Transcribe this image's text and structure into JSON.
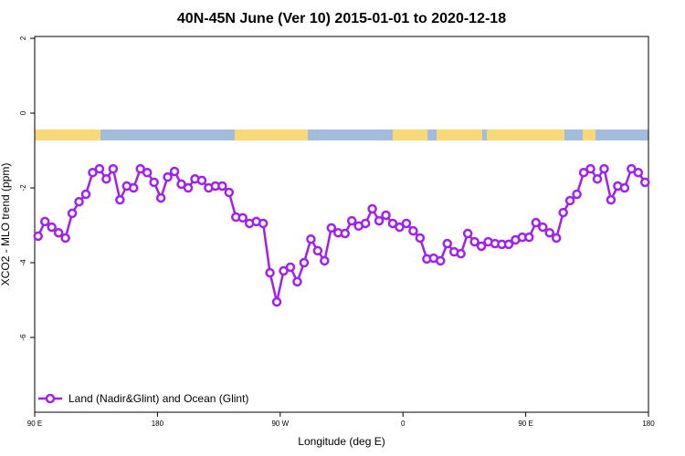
{
  "chart_data": {
    "type": "line",
    "title": "40N-45N June (Ver 10)   2015-01-01 to 2020-12-18",
    "x_label": "Longitude (deg E)",
    "y_label": "XCO2 - MLO trend (ppm)",
    "x": [
      92.5,
      97.5,
      102.5,
      107.5,
      112.5,
      117.5,
      122.5,
      127.5,
      132.5,
      137.5,
      142.5,
      147.5,
      152.5,
      157.5,
      162.5,
      167.5,
      172.5,
      177.5,
      182.5,
      187.5,
      192.5,
      197.5,
      202.5,
      207.5,
      212.5,
      217.5,
      222.5,
      227.5,
      232.5,
      237.5,
      242.5,
      247.5,
      252.5,
      257.5,
      262.5,
      267.5,
      272.5,
      277.5,
      282.5,
      287.5,
      292.5,
      297.5,
      302.5,
      307.5,
      312.5,
      317.5,
      322.5,
      327.5,
      332.5,
      337.5,
      342.5,
      347.5,
      352.5,
      357.5,
      362.5,
      367.5,
      372.5,
      377.5,
      382.5,
      387.5,
      392.5,
      397.5,
      402.5,
      407.5,
      412.5,
      417.5,
      422.5,
      427.5,
      432.5,
      437.5,
      442.5,
      447.5,
      452.5,
      457.5,
      462.5,
      467.5,
      472.5,
      477.5,
      482.5,
      487.5,
      492.5,
      497.5,
      502.5,
      507.5,
      512.5,
      517.5,
      522.5,
      527.5,
      532.5,
      537.5
    ],
    "series": [
      {
        "name": "Land (Nadir&Glint) and Ocean (Glint)",
        "color": "#a020f0",
        "values": [
          -3.29,
          -2.9,
          -3.05,
          -3.2,
          -3.34,
          -2.68,
          -2.37,
          -2.17,
          -1.59,
          -1.49,
          -1.76,
          -1.49,
          -2.32,
          -1.95,
          -2.0,
          -1.49,
          -1.59,
          -1.85,
          -2.27,
          -1.71,
          -1.56,
          -1.9,
          -2.0,
          -1.76,
          -1.8,
          -2.0,
          -1.95,
          -1.95,
          -2.12,
          -2.78,
          -2.8,
          -2.95,
          -2.9,
          -2.95,
          -4.27,
          -5.05,
          -4.22,
          -4.12,
          -4.51,
          -4.0,
          -3.37,
          -3.68,
          -3.95,
          -3.07,
          -3.2,
          -3.22,
          -2.88,
          -3.02,
          -2.95,
          -2.56,
          -2.88,
          -2.73,
          -2.95,
          -3.05,
          -2.95,
          -3.15,
          -3.34,
          -3.9,
          -3.88,
          -3.95,
          -3.49,
          -3.71,
          -3.76,
          -3.22,
          -3.44,
          -3.56,
          -3.44,
          -3.49,
          -3.51,
          -3.51,
          -3.39,
          -3.32,
          -3.32,
          -2.93,
          -3.05,
          -3.2,
          -3.34,
          -2.66,
          -2.34,
          -2.17,
          -1.59,
          -1.49,
          -1.76,
          -1.49,
          -2.32,
          -1.95,
          -2.0,
          -1.49,
          -1.59,
          -1.85
        ]
      }
    ],
    "xlim": [
      90,
      540
    ],
    "xticks": [
      {
        "value": 90,
        "label": "90 E"
      },
      180,
      {
        "value": 270,
        "label": "90 W"
      },
      {
        "value": 360,
        "label": "0"
      },
      {
        "value": 450,
        "label": "90 E"
      },
      {
        "value": 540,
        "label": "180"
      }
    ],
    "ylim": [
      -8,
      2.05
    ],
    "yticks": [
      2,
      0,
      -2,
      -4,
      -6
    ],
    "legend": "bottom-left"
  }
}
